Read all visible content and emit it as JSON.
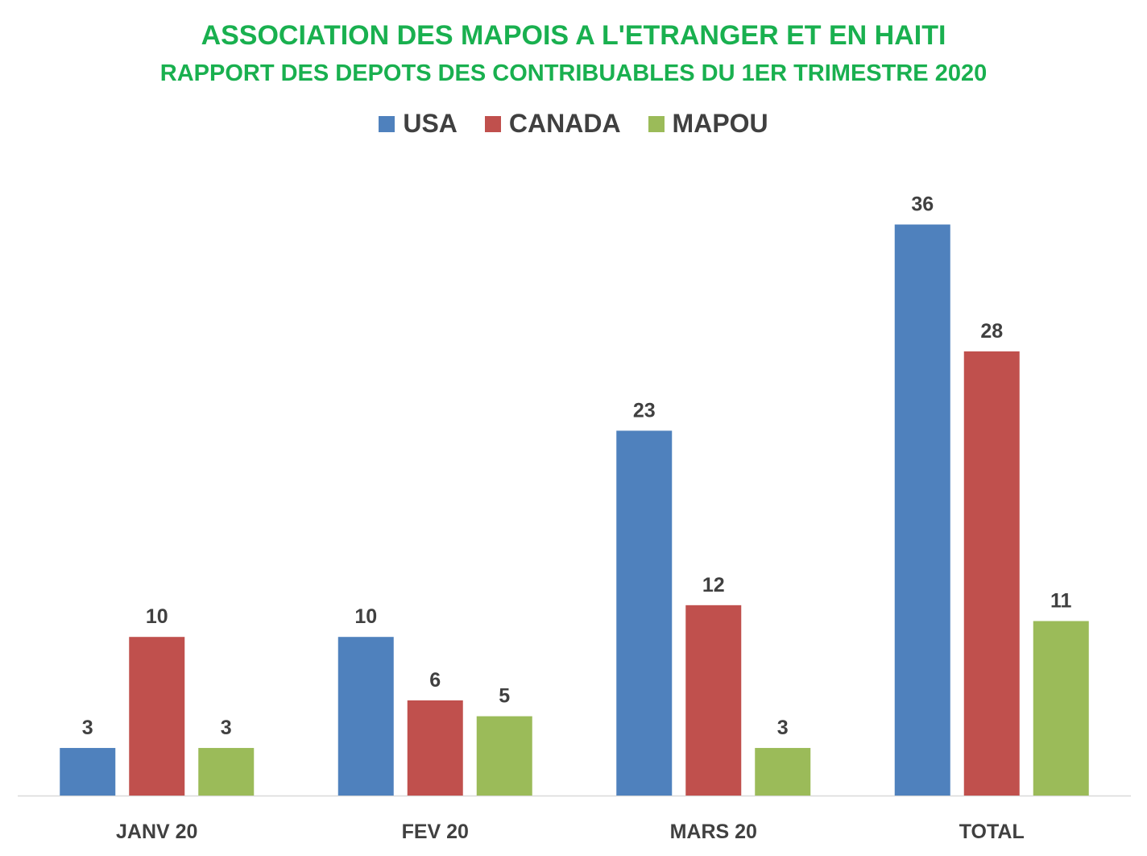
{
  "chart_data": {
    "type": "bar",
    "title": "ASSOCIATION DES MAPOIS A L'ETRANGER ET EN HAITI",
    "subtitle": "RAPPORT DES DEPOTS DES CONTRIBUABLES DU 1ER TRIMESTRE 2020",
    "categories": [
      "JANV 20",
      "FEV 20",
      "MARS 20",
      "TOTAL"
    ],
    "series": [
      {
        "name": "USA",
        "color": "#4f81bd",
        "values": [
          3,
          10,
          23,
          36
        ]
      },
      {
        "name": "CANADA",
        "color": "#c0504d",
        "values": [
          10,
          6,
          12,
          28
        ]
      },
      {
        "name": "MAPOU",
        "color": "#9bbb59",
        "values": [
          3,
          5,
          3,
          11
        ]
      }
    ],
    "ylim": [
      0,
      40
    ],
    "grid": false,
    "legend": "top-center",
    "data_labels": true
  }
}
